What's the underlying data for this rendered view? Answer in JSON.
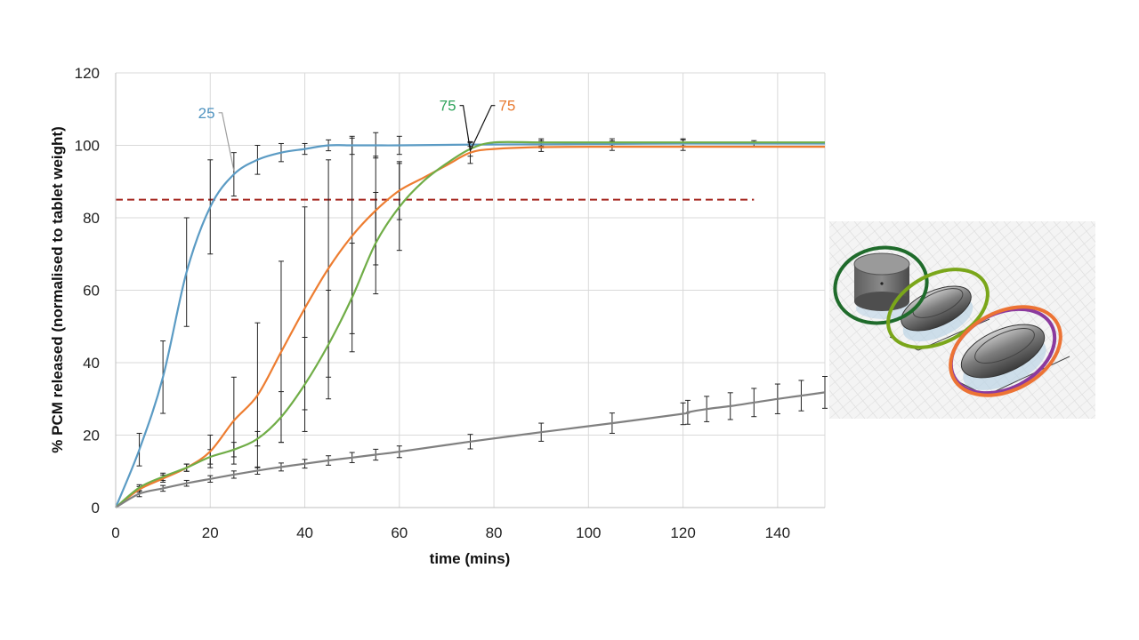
{
  "chart_data": {
    "type": "line",
    "xlabel": "time (mins)",
    "ylabel": "% PCM released (normalised to tablet weight)",
    "xlim": [
      0,
      150
    ],
    "ylim": [
      0,
      120
    ],
    "xticks": [
      "0",
      "20",
      "40",
      "60",
      "80",
      "100",
      "120",
      "140"
    ],
    "yticks": [
      "0",
      "20",
      "40",
      "60",
      "80",
      "100",
      "120"
    ],
    "grid": true,
    "reference_line": {
      "y": 85,
      "color": "#a3231c",
      "style": "dashed",
      "x_range": [
        0,
        135
      ]
    },
    "series": [
      {
        "color": "#5b9bc4",
        "x": [
          0,
          5,
          10,
          15,
          20,
          25,
          30,
          35,
          40,
          45,
          50,
          55,
          60,
          75,
          90,
          105,
          120,
          135,
          150
        ],
        "y": [
          0,
          16,
          36,
          65,
          83,
          92,
          96,
          98,
          99,
          100,
          100,
          100,
          100,
          100.2,
          100.3,
          100.4,
          100.5,
          100.5,
          100.5
        ],
        "err": [
          0,
          4.5,
          10,
          15,
          13,
          6,
          4,
          2.5,
          1.5,
          1.5,
          2.5,
          3.5,
          2.5,
          0.5,
          1,
          0.8,
          1,
          0.8,
          0
        ]
      },
      {
        "color": "#ed7d31",
        "x": [
          0,
          5,
          10,
          15,
          20,
          25,
          30,
          35,
          40,
          45,
          50,
          55,
          60,
          65,
          70,
          75,
          80,
          90,
          105,
          120,
          150
        ],
        "y": [
          0,
          5,
          8,
          11,
          15.5,
          24,
          31,
          43,
          55,
          66,
          75,
          82,
          87.5,
          91,
          94.5,
          98,
          99,
          99.5,
          99.6,
          99.6,
          99.6
        ],
        "err": [
          0,
          0.8,
          1,
          1,
          4.5,
          12,
          20,
          25,
          28,
          30,
          27,
          15,
          8,
          0,
          0,
          3,
          0,
          1.2,
          1,
          1,
          0
        ]
      },
      {
        "color": "#70ad47",
        "x": [
          0,
          5,
          10,
          15,
          20,
          25,
          30,
          35,
          40,
          45,
          50,
          55,
          60,
          65,
          70,
          75,
          80,
          90,
          105,
          120,
          150
        ],
        "y": [
          0,
          5.5,
          8.5,
          11,
          14,
          16,
          19,
          25,
          34,
          45,
          58,
          73,
          83,
          90,
          95,
          99,
          100.8,
          100.8,
          100.8,
          100.8,
          100.8
        ],
        "err": [
          0,
          0.8,
          1,
          1,
          2,
          2,
          2,
          7,
          13,
          15,
          15,
          14,
          12,
          0,
          0,
          2,
          0,
          1,
          1,
          1,
          0
        ]
      },
      {
        "color": "#808080",
        "x": [
          0,
          5,
          10,
          15,
          20,
          25,
          30,
          35,
          40,
          45,
          50,
          55,
          60,
          75,
          90,
          105,
          120,
          121,
          125,
          130,
          135,
          140,
          145,
          150
        ],
        "y": [
          0,
          3.8,
          5.3,
          6.7,
          7.9,
          9.1,
          10.2,
          11.2,
          12.1,
          13,
          13.8,
          14.6,
          15.4,
          18.2,
          20.8,
          23.3,
          25.9,
          26.3,
          27.2,
          28,
          29,
          30,
          30.9,
          31.8
        ],
        "err": [
          0,
          0.8,
          0.8,
          0.8,
          0.9,
          1,
          1,
          1.1,
          1.2,
          1.3,
          1.4,
          1.5,
          1.6,
          2,
          2.5,
          2.8,
          3,
          3.3,
          3.5,
          3.7,
          3.9,
          4.1,
          4.2,
          4.4
        ]
      }
    ],
    "annotations": [
      {
        "text": "25",
        "color": "#4f93c0",
        "label_x": 21,
        "label_y": 109,
        "target_x": 25,
        "target_y": 93,
        "leader_color": "#9e9e9e"
      },
      {
        "text": "75",
        "color": "#2fa35b",
        "label_x": 72,
        "label_y": 111,
        "target_x": 75,
        "target_y": 98.5,
        "leader_color": "#111111"
      },
      {
        "text": "75",
        "color": "#e8792f",
        "label_x": 81,
        "label_y": 111,
        "target_x": 75,
        "target_y": 98.5,
        "leader_color": "#111111"
      }
    ]
  },
  "tablet_panel": {
    "highlight_colors": [
      "#1f6b2b",
      "#7aa61a",
      "#8b3a9e",
      "#ec7334"
    ]
  }
}
